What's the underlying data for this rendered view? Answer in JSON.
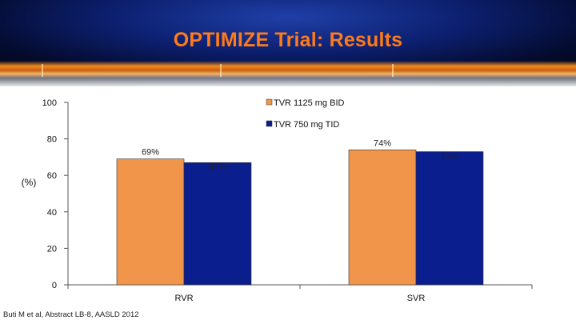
{
  "slide": {
    "title": "OPTIMIZE Trial: Results",
    "footnote": "Buti M et al, Abstract LB-8, AASLD 2012"
  },
  "colors": {
    "title": "#ff7a1a",
    "series1": "#f0954a",
    "series2": "#0b1e8e"
  },
  "chart_data": {
    "type": "bar",
    "categories": [
      "RVR",
      "SVR"
    ],
    "series": [
      {
        "name": "TVR 1125 mg BID",
        "values": [
          69,
          74
        ],
        "labels": [
          "69%",
          "74%"
        ]
      },
      {
        "name": "TVR 750 mg TID",
        "values": [
          67,
          73
        ],
        "labels": [
          "67%",
          "73%"
        ]
      }
    ],
    "ylabel": "(%)",
    "ylim": [
      0,
      100
    ],
    "yticks": [
      "0",
      "20",
      "40",
      "60",
      "80",
      "100"
    ],
    "legend_position": "top-right",
    "grid": false
  }
}
